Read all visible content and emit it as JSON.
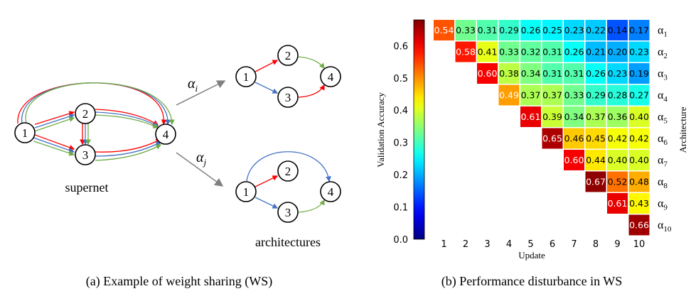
{
  "panel_a": {
    "caption": "(a) Example of weight sharing (WS)",
    "supernet_label": "supernet",
    "architectures_label": "architectures",
    "arrow_label_i": "α",
    "arrow_label_i_sub": "i",
    "arrow_label_j": "α",
    "arrow_label_j_sub": "j",
    "node_labels": [
      "1",
      "2",
      "3",
      "4"
    ],
    "edge_colors": {
      "red": "#ff0000",
      "blue": "#4472c4",
      "green": "#70ad47"
    }
  },
  "panel_b": {
    "caption": "(b) Performance disturbance in WS",
    "chart_data": {
      "type": "heatmap",
      "xlabel": "Update",
      "ylabel": "Architecture",
      "colorbar_label": "Validation Accuracy",
      "colorbar_ticks": [
        "0.0",
        "0.1",
        "0.2",
        "0.3",
        "0.4",
        "0.5",
        "0.6"
      ],
      "colorbar_range": [
        0.0,
        0.68
      ],
      "colormap": "jet",
      "x_categories": [
        "1",
        "2",
        "3",
        "4",
        "5",
        "6",
        "7",
        "8",
        "9",
        "10"
      ],
      "rows": [
        {
          "label": "α",
          "sub": "1",
          "start_update": 1,
          "values": [
            0.54,
            0.33,
            0.31,
            0.29,
            0.26,
            0.25,
            0.23,
            0.22,
            0.14,
            0.17
          ]
        },
        {
          "label": "α",
          "sub": "2",
          "start_update": 2,
          "values": [
            0.58,
            0.41,
            0.33,
            0.32,
            0.31,
            0.26,
            0.21,
            0.2,
            0.23
          ]
        },
        {
          "label": "α",
          "sub": "3",
          "start_update": 3,
          "values": [
            0.6,
            0.38,
            0.34,
            0.31,
            0.31,
            0.26,
            0.23,
            0.19
          ]
        },
        {
          "label": "α",
          "sub": "4",
          "start_update": 4,
          "values": [
            0.49,
            0.37,
            0.37,
            0.33,
            0.29,
            0.28,
            0.27
          ]
        },
        {
          "label": "α",
          "sub": "5",
          "start_update": 5,
          "values": [
            0.61,
            0.39,
            0.34,
            0.37,
            0.36,
            0.4
          ]
        },
        {
          "label": "α",
          "sub": "6",
          "start_update": 6,
          "values": [
            0.65,
            0.46,
            0.45,
            0.42,
            0.42
          ]
        },
        {
          "label": "α",
          "sub": "7",
          "start_update": 7,
          "values": [
            0.6,
            0.44,
            0.4,
            0.4
          ]
        },
        {
          "label": "α",
          "sub": "8",
          "start_update": 8,
          "values": [
            0.67,
            0.52,
            0.48
          ]
        },
        {
          "label": "α",
          "sub": "9",
          "start_update": 9,
          "values": [
            0.61,
            0.43
          ]
        },
        {
          "label": "α",
          "sub": "10",
          "start_update": 10,
          "values": [
            0.66
          ]
        }
      ]
    }
  }
}
